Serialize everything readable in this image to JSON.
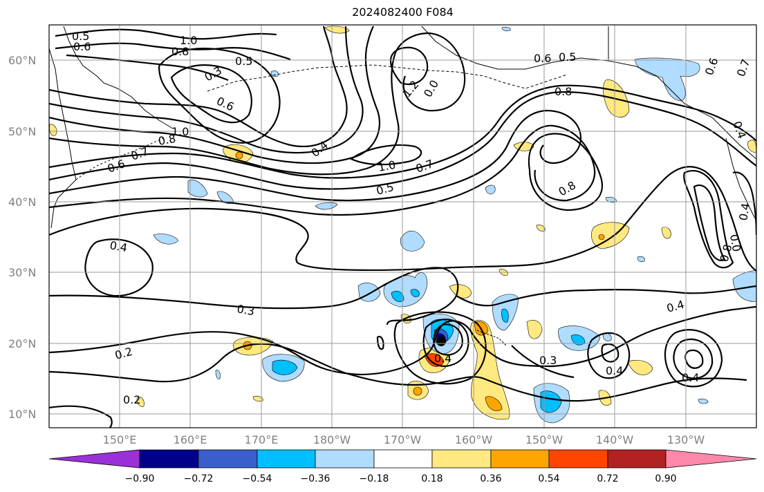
{
  "title": "2024082400 F084",
  "latitude_labels": [
    "60°N",
    "50°N",
    "40°N",
    "30°N",
    "20°N",
    "10°N"
  ],
  "longitude_labels": [
    "150°E",
    "160°E",
    "170°E",
    "180°W",
    "170°W",
    "160°W",
    "150°W",
    "140°W",
    "130°W"
  ],
  "contour_labels": [
    "0.5",
    "0.6",
    "1.0",
    "0.8",
    "0.5",
    "0.3",
    "0.6",
    "1.0",
    "0.8",
    "0.6",
    "0.7",
    "0.4",
    "1.2",
    "0.0",
    "1.0",
    "0.7",
    "0.5",
    "0.8",
    "0.8",
    "0.6",
    "0.5",
    "0.6",
    "0.7",
    "0.4",
    "0.4",
    "0.3",
    "0.2",
    "0.2",
    "0.4",
    "0.3",
    "0.4",
    "0.4",
    "0.4",
    "0.8",
    "0.0",
    "0.4"
  ],
  "colorbar": {
    "tick_labels": [
      "−0.90",
      "−0.72",
      "−0.54",
      "−0.36",
      "−0.18",
      "0.18",
      "0.36",
      "0.54",
      "0.72",
      "0.90"
    ],
    "colors": [
      "#9b30d9",
      "#00008b",
      "#3a5fcd",
      "#00bfff",
      "#b0dcff",
      "#ffffff",
      "#ffe980",
      "#ffa500",
      "#ff4500",
      "#b22222",
      "#ff88aa"
    ]
  },
  "colors": {
    "contour": "#000000",
    "grid": "#999999",
    "coastline": "#000000",
    "label_gray": "#808080"
  }
}
